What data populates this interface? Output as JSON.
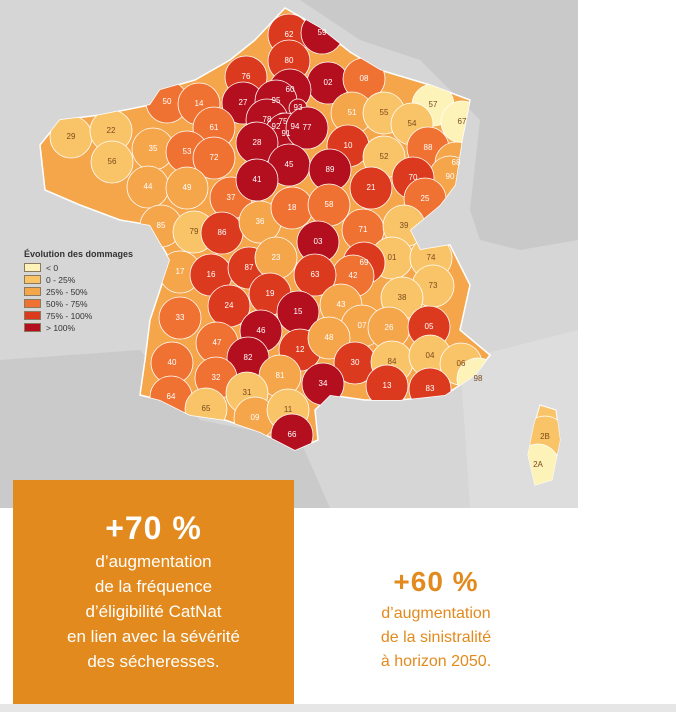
{
  "colors": {
    "lt0": "#fdf2b8",
    "c0_25": "#f9c468",
    "c25_50": "#f5a54a",
    "c50_75": "#ef7232",
    "c75_100": "#dc3a1f",
    "gt100": "#b40f1e",
    "accent": "#e28a1d"
  },
  "legend": {
    "title": "Évolution des dommages",
    "items": [
      {
        "label": "< 0",
        "color": "#fdf2b8"
      },
      {
        "label": "0 - 25%",
        "color": "#f9c468"
      },
      {
        "label": "25% - 50%",
        "color": "#f5a54a"
      },
      {
        "label": "50% - 75%",
        "color": "#ef7232"
      },
      {
        "label": "75% - 100%",
        "color": "#dc3a1f"
      },
      {
        "label": "> 100%",
        "color": "#b40f1e"
      }
    ]
  },
  "departments": [
    {
      "code": "62",
      "cls": "c75_100"
    },
    {
      "code": "59",
      "cls": "gt100"
    },
    {
      "code": "80",
      "cls": "c75_100"
    },
    {
      "code": "02",
      "cls": "gt100"
    },
    {
      "code": "08",
      "cls": "c50_75"
    },
    {
      "code": "76",
      "cls": "c75_100"
    },
    {
      "code": "60",
      "cls": "gt100"
    },
    {
      "code": "27",
      "cls": "gt100"
    },
    {
      "code": "95",
      "cls": "gt100"
    },
    {
      "code": "93",
      "cls": "gt100"
    },
    {
      "code": "78",
      "cls": "gt100"
    },
    {
      "code": "75",
      "cls": "gt100"
    },
    {
      "code": "92",
      "cls": "gt100"
    },
    {
      "code": "94",
      "cls": "gt100"
    },
    {
      "code": "91",
      "cls": "gt100"
    },
    {
      "code": "77",
      "cls": "gt100"
    },
    {
      "code": "51",
      "cls": "c25_50"
    },
    {
      "code": "55",
      "cls": "c0_25"
    },
    {
      "code": "57",
      "cls": "lt0"
    },
    {
      "code": "54",
      "cls": "c0_25"
    },
    {
      "code": "67",
      "cls": "lt0"
    },
    {
      "code": "50",
      "cls": "c50_75"
    },
    {
      "code": "14",
      "cls": "c50_75"
    },
    {
      "code": "61",
      "cls": "c50_75"
    },
    {
      "code": "29",
      "cls": "c0_25"
    },
    {
      "code": "22",
      "cls": "c0_25"
    },
    {
      "code": "35",
      "cls": "c25_50"
    },
    {
      "code": "56",
      "cls": "c0_25"
    },
    {
      "code": "53",
      "cls": "c50_75"
    },
    {
      "code": "72",
      "cls": "c50_75"
    },
    {
      "code": "28",
      "cls": "gt100"
    },
    {
      "code": "45",
      "cls": "gt100"
    },
    {
      "code": "10",
      "cls": "c75_100"
    },
    {
      "code": "52",
      "cls": "c0_25"
    },
    {
      "code": "88",
      "cls": "c50_75"
    },
    {
      "code": "68",
      "cls": "c25_50"
    },
    {
      "code": "90",
      "cls": "c25_50"
    },
    {
      "code": "89",
      "cls": "gt100"
    },
    {
      "code": "21",
      "cls": "c75_100"
    },
    {
      "code": "70",
      "cls": "c75_100"
    },
    {
      "code": "25",
      "cls": "c50_75"
    },
    {
      "code": "44",
      "cls": "c25_50"
    },
    {
      "code": "49",
      "cls": "c25_50"
    },
    {
      "code": "37",
      "cls": "c50_75"
    },
    {
      "code": "41",
      "cls": "gt100"
    },
    {
      "code": "85",
      "cls": "c25_50"
    },
    {
      "code": "79",
      "cls": "c0_25"
    },
    {
      "code": "86",
      "cls": "c75_100"
    },
    {
      "code": "36",
      "cls": "c25_50"
    },
    {
      "code": "18",
      "cls": "c50_75"
    },
    {
      "code": "58",
      "cls": "c50_75"
    },
    {
      "code": "71",
      "cls": "c50_75"
    },
    {
      "code": "39",
      "cls": "c0_25"
    },
    {
      "code": "17",
      "cls": "c25_50"
    },
    {
      "code": "16",
      "cls": "c75_100"
    },
    {
      "code": "87",
      "cls": "c75_100"
    },
    {
      "code": "23",
      "cls": "c25_50"
    },
    {
      "code": "03",
      "cls": "gt100"
    },
    {
      "code": "01",
      "cls": "c0_25"
    },
    {
      "code": "74",
      "cls": "c0_25"
    },
    {
      "code": "69",
      "cls": "c75_100"
    },
    {
      "code": "42",
      "cls": "c50_75"
    },
    {
      "code": "63",
      "cls": "c75_100"
    },
    {
      "code": "73",
      "cls": "c0_25"
    },
    {
      "code": "33",
      "cls": "c50_75"
    },
    {
      "code": "24",
      "cls": "c75_100"
    },
    {
      "code": "19",
      "cls": "c75_100"
    },
    {
      "code": "15",
      "cls": "gt100"
    },
    {
      "code": "43",
      "cls": "c25_50"
    },
    {
      "code": "38",
      "cls": "c0_25"
    },
    {
      "code": "07",
      "cls": "c25_50"
    },
    {
      "code": "26",
      "cls": "c25_50"
    },
    {
      "code": "05",
      "cls": "c75_100"
    },
    {
      "code": "47",
      "cls": "c50_75"
    },
    {
      "code": "46",
      "cls": "gt100"
    },
    {
      "code": "12",
      "cls": "c75_100"
    },
    {
      "code": "48",
      "cls": "c25_50"
    },
    {
      "code": "40",
      "cls": "c50_75"
    },
    {
      "code": "82",
      "cls": "gt100"
    },
    {
      "code": "30",
      "cls": "c75_100"
    },
    {
      "code": "84",
      "cls": "c0_25"
    },
    {
      "code": "04",
      "cls": "c0_25"
    },
    {
      "code": "06",
      "cls": "c0_25"
    },
    {
      "code": "32",
      "cls": "c50_75"
    },
    {
      "code": "81",
      "cls": "c25_50"
    },
    {
      "code": "31",
      "cls": "c0_25"
    },
    {
      "code": "34",
      "cls": "gt100"
    },
    {
      "code": "13",
      "cls": "c75_100"
    },
    {
      "code": "83",
      "cls": "c75_100"
    },
    {
      "code": "64",
      "cls": "c50_75"
    },
    {
      "code": "65",
      "cls": "c0_25"
    },
    {
      "code": "09",
      "cls": "c25_50"
    },
    {
      "code": "11",
      "cls": "c0_25"
    },
    {
      "code": "66",
      "cls": "gt100"
    },
    {
      "code": "98",
      "cls": "lt0"
    },
    {
      "code": "2B",
      "cls": "c0_25"
    },
    {
      "code": "2A",
      "cls": "lt0"
    }
  ],
  "stat1": {
    "value": "+70 %",
    "text": "d’augmentation\nde la fréquence\nd’éligibilité CatNat\nen lien avec la sévérité\ndes sécheresses."
  },
  "stat2": {
    "value": "+60 %",
    "text": "d’augmentation\nde la sinistralité\nà horizon 2050."
  }
}
